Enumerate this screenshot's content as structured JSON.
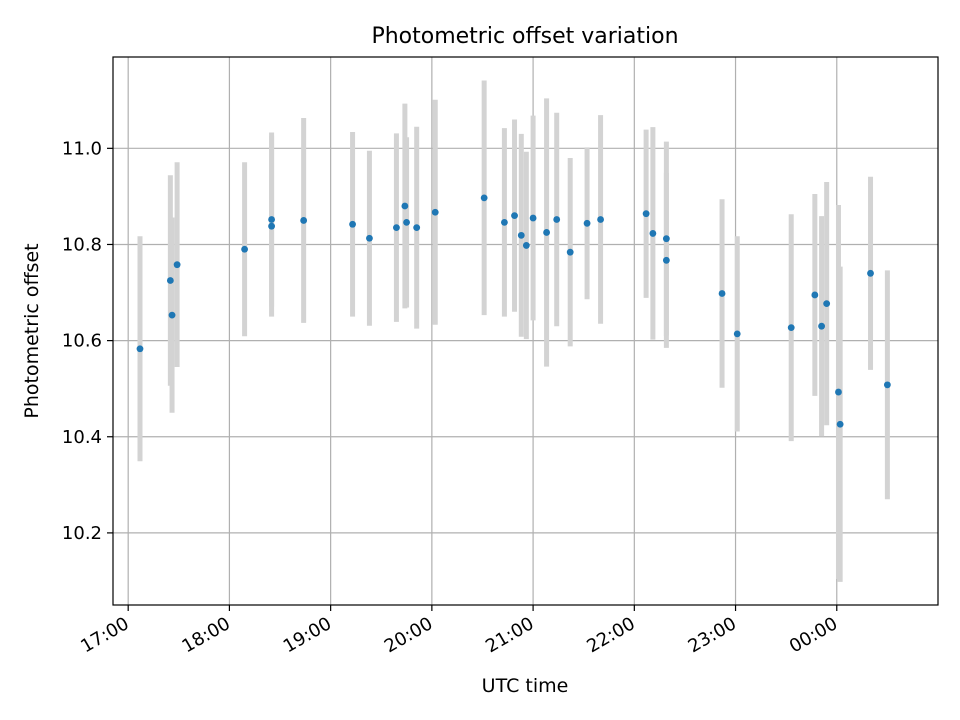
{
  "chart_data": {
    "type": "scatter",
    "title": "Photometric offset variation",
    "xlabel": "UTC time",
    "ylabel": "Photometric offset",
    "x_tick_labels": [
      "17:00",
      "18:00",
      "19:00",
      "20:00",
      "21:00",
      "22:00",
      "23:00",
      "00:00"
    ],
    "y_tick_labels": [
      "10.2",
      "10.4",
      "10.6",
      "10.8",
      "11.0"
    ],
    "y_ticks": [
      10.2,
      10.4,
      10.6,
      10.8,
      11.0
    ],
    "xlim": [
      "16:51",
      "01:00"
    ],
    "ylim": [
      10.05,
      11.19
    ],
    "grid": true,
    "marker_color": "#1f77b4",
    "errorbar_color": "#d3d3d3",
    "points": [
      {
        "time": "17:07",
        "y": 10.583,
        "err": 0.234
      },
      {
        "time": "17:25",
        "y": 10.725,
        "err": 0.219
      },
      {
        "time": "17:26",
        "y": 10.653,
        "err": 0.203
      },
      {
        "time": "17:29",
        "y": 10.758,
        "err": 0.213
      },
      {
        "time": "18:09",
        "y": 10.79,
        "err": 0.181
      },
      {
        "time": "18:25",
        "y": 10.838,
        "err": 0.188
      },
      {
        "time": "18:25",
        "y": 10.852,
        "err": 0.181
      },
      {
        "time": "18:44",
        "y": 10.85,
        "err": 0.213
      },
      {
        "time": "19:13",
        "y": 10.842,
        "err": 0.192
      },
      {
        "time": "19:23",
        "y": 10.813,
        "err": 0.182
      },
      {
        "time": "19:39",
        "y": 10.835,
        "err": 0.196
      },
      {
        "time": "19:44",
        "y": 10.88,
        "err": 0.213
      },
      {
        "time": "19:45",
        "y": 10.846,
        "err": 0.177
      },
      {
        "time": "19:51",
        "y": 10.835,
        "err": 0.21
      },
      {
        "time": "20:02",
        "y": 10.867,
        "err": 0.234
      },
      {
        "time": "20:31",
        "y": 10.897,
        "err": 0.244
      },
      {
        "time": "20:43",
        "y": 10.846,
        "err": 0.196
      },
      {
        "time": "20:49",
        "y": 10.86,
        "err": 0.2
      },
      {
        "time": "20:53",
        "y": 10.819,
        "err": 0.211
      },
      {
        "time": "20:56",
        "y": 10.798,
        "err": 0.195
      },
      {
        "time": "21:00",
        "y": 10.855,
        "err": 0.213
      },
      {
        "time": "21:08",
        "y": 10.825,
        "err": 0.279
      },
      {
        "time": "21:14",
        "y": 10.852,
        "err": 0.222
      },
      {
        "time": "21:22",
        "y": 10.784,
        "err": 0.196
      },
      {
        "time": "21:32",
        "y": 10.844,
        "err": 0.158
      },
      {
        "time": "21:40",
        "y": 10.852,
        "err": 0.217
      },
      {
        "time": "22:07",
        "y": 10.864,
        "err": 0.175
      },
      {
        "time": "22:11",
        "y": 10.823,
        "err": 0.221
      },
      {
        "time": "22:19",
        "y": 10.812,
        "err": 0.202
      },
      {
        "time": "22:19",
        "y": 10.767,
        "err": 0.182
      },
      {
        "time": "22:52",
        "y": 10.698,
        "err": 0.196
      },
      {
        "time": "23:01",
        "y": 10.614,
        "err": 0.203
      },
      {
        "time": "23:33",
        "y": 10.627,
        "err": 0.236
      },
      {
        "time": "23:47",
        "y": 10.695,
        "err": 0.21
      },
      {
        "time": "23:51",
        "y": 10.63,
        "err": 0.229
      },
      {
        "time": "23:54",
        "y": 10.677,
        "err": 0.253
      },
      {
        "time": "00:01",
        "y": 10.493,
        "err": 0.389
      },
      {
        "time": "00:02",
        "y": 10.426,
        "err": 0.328
      },
      {
        "time": "00:20",
        "y": 10.74,
        "err": 0.201
      },
      {
        "time": "00:30",
        "y": 10.508,
        "err": 0.238
      }
    ]
  }
}
